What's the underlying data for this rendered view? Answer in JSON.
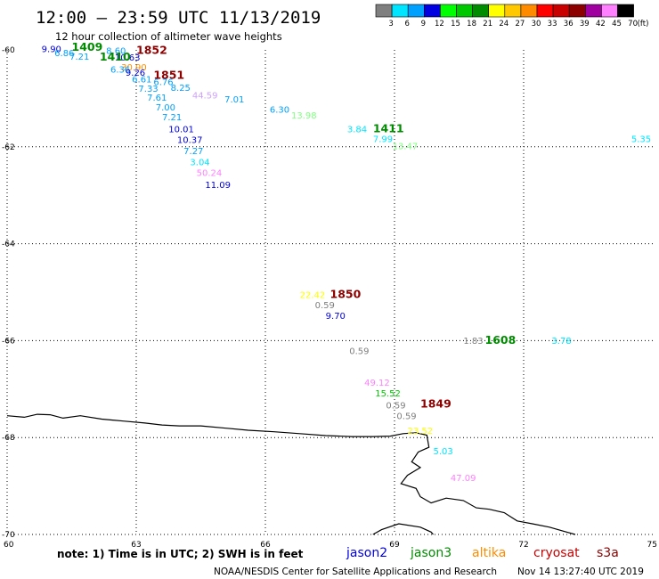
{
  "header": {
    "title": "12:00 — 23:59 UTC 11/13/2019",
    "subtitle": "12 hour collection of altimeter wave heights"
  },
  "legend": {
    "unit": "(ft)",
    "bins": [
      {
        "label": "3",
        "color": "#7f7f7f"
      },
      {
        "label": "6",
        "color": "#00e5ff"
      },
      {
        "label": "9",
        "color": "#00a0ff"
      },
      {
        "label": "12",
        "color": "#0000e0"
      },
      {
        "label": "15",
        "color": "#00ff00"
      },
      {
        "label": "18",
        "color": "#00c800"
      },
      {
        "label": "21",
        "color": "#008c00"
      },
      {
        "label": "24",
        "color": "#ffff00"
      },
      {
        "label": "27",
        "color": "#ffc800"
      },
      {
        "label": "30",
        "color": "#ff8c00"
      },
      {
        "label": "33",
        "color": "#ff0000"
      },
      {
        "label": "36",
        "color": "#c80000"
      },
      {
        "label": "39",
        "color": "#8c0000"
      },
      {
        "label": "42",
        "color": "#a000a0"
      },
      {
        "label": "45",
        "color": "#ff80ff"
      },
      {
        "label": "70",
        "color": "#000000"
      }
    ]
  },
  "map": {
    "lon_range": [
      60,
      75
    ],
    "lat_range": [
      -70,
      -60
    ],
    "lon_ticks": [
      {
        "value": 60,
        "label": "60"
      },
      {
        "value": 63,
        "label": "63"
      },
      {
        "value": 66,
        "label": "66"
      },
      {
        "value": 69,
        "label": "69"
      },
      {
        "value": 72,
        "label": "72"
      },
      {
        "value": 75,
        "label": "75"
      }
    ],
    "lat_ticks": [
      {
        "value": -60,
        "label": "-60"
      },
      {
        "value": -62,
        "label": "-62"
      },
      {
        "value": -64,
        "label": "-64"
      },
      {
        "value": -66,
        "label": "-66"
      },
      {
        "value": -68,
        "label": "-68"
      },
      {
        "value": -70,
        "label": "-70"
      }
    ],
    "grid": "dotted"
  },
  "wave_heights": [
    {
      "text": "9.90",
      "lon": 60.8,
      "lat": -60.05,
      "color": "#0000e0"
    },
    {
      "text": "6.86",
      "lon": 61.1,
      "lat": -60.13,
      "color": "#00a0ff"
    },
    {
      "text": "7.21",
      "lon": 61.45,
      "lat": -60.2,
      "color": "#00a0ff"
    },
    {
      "text": "8.60",
      "lon": 62.3,
      "lat": -60.08,
      "color": "#00a0ff"
    },
    {
      "text": "10.63",
      "lon": 62.5,
      "lat": -60.22,
      "color": "#0000e0"
    },
    {
      "text": "30.90",
      "lon": 62.65,
      "lat": -60.42,
      "color": "#ff8c00"
    },
    {
      "text": "6.36",
      "lon": 62.4,
      "lat": -60.47,
      "color": "#00a0ff"
    },
    {
      "text": "9.26",
      "lon": 62.75,
      "lat": -60.53,
      "color": "#0000e0"
    },
    {
      "text": "6.61",
      "lon": 62.9,
      "lat": -60.67,
      "color": "#00a0ff"
    },
    {
      "text": "6.76",
      "lon": 63.4,
      "lat": -60.73,
      "color": "#00a0ff"
    },
    {
      "text": "7.33",
      "lon": 63.05,
      "lat": -60.86,
      "color": "#00a0ff"
    },
    {
      "text": "8.25",
      "lon": 63.8,
      "lat": -60.85,
      "color": "#00a0ff"
    },
    {
      "text": "7.61",
      "lon": 63.25,
      "lat": -61.05,
      "color": "#00a0ff"
    },
    {
      "text": "44.59",
      "lon": 64.3,
      "lat": -61.0,
      "color": "#d0a0ff"
    },
    {
      "text": "7.01",
      "lon": 65.05,
      "lat": -61.08,
      "color": "#00a0ff"
    },
    {
      "text": "7.00",
      "lon": 63.45,
      "lat": -61.25,
      "color": "#00a0ff"
    },
    {
      "text": "6.30",
      "lon": 66.1,
      "lat": -61.3,
      "color": "#00a0ff"
    },
    {
      "text": "13.98",
      "lon": 66.6,
      "lat": -61.42,
      "color": "#80ff80"
    },
    {
      "text": "7.21",
      "lon": 63.6,
      "lat": -61.45,
      "color": "#00a0ff"
    },
    {
      "text": "10.01",
      "lon": 63.75,
      "lat": -61.7,
      "color": "#0000e0"
    },
    {
      "text": "3.84",
      "lon": 67.9,
      "lat": -61.7,
      "color": "#00e5ff"
    },
    {
      "text": "7.99",
      "lon": 68.5,
      "lat": -61.9,
      "color": "#00e5ff"
    },
    {
      "text": "13.47",
      "lon": 68.95,
      "lat": -62.05,
      "color": "#80ff80"
    },
    {
      "text": "10.37",
      "lon": 63.95,
      "lat": -61.92,
      "color": "#0000e0"
    },
    {
      "text": "5.35",
      "lon": 74.5,
      "lat": -61.9,
      "color": "#00e5ff"
    },
    {
      "text": "7.27",
      "lon": 64.1,
      "lat": -62.15,
      "color": "#00a0ff"
    },
    {
      "text": "3.04",
      "lon": 64.25,
      "lat": -62.38,
      "color": "#00e5ff"
    },
    {
      "text": "50.24",
      "lon": 64.4,
      "lat": -62.6,
      "color": "#ff80ff"
    },
    {
      "text": "11.09",
      "lon": 64.6,
      "lat": -62.85,
      "color": "#0000e0"
    },
    {
      "text": "22.42",
      "lon": 66.8,
      "lat": -65.12,
      "color": "#ffff00"
    },
    {
      "text": "0.59",
      "lon": 67.15,
      "lat": -65.33,
      "color": "#7f7f7f"
    },
    {
      "text": "9.70",
      "lon": 67.4,
      "lat": -65.55,
      "color": "#0000e0"
    },
    {
      "text": "1.83",
      "lon": 70.6,
      "lat": -66.07,
      "color": "#7f7f7f"
    },
    {
      "text": "3.78",
      "lon": 72.65,
      "lat": -66.07,
      "color": "#00e5ff"
    },
    {
      "text": "0.59",
      "lon": 67.95,
      "lat": -66.28,
      "color": "#7f7f7f"
    },
    {
      "text": "49.12",
      "lon": 68.3,
      "lat": -66.93,
      "color": "#ff80ff"
    },
    {
      "text": "15.52",
      "lon": 68.55,
      "lat": -67.15,
      "color": "#00c800"
    },
    {
      "text": "0.59",
      "lon": 68.8,
      "lat": -67.4,
      "color": "#7f7f7f"
    },
    {
      "text": "0.59",
      "lon": 69.05,
      "lat": -67.62,
      "color": "#7f7f7f"
    },
    {
      "text": "23.52",
      "lon": 69.3,
      "lat": -67.92,
      "color": "#ffff00"
    },
    {
      "text": "5.03",
      "lon": 69.9,
      "lat": -68.35,
      "color": "#00e5ff"
    },
    {
      "text": "47.09",
      "lon": 70.3,
      "lat": -68.9,
      "color": "#ff80ff"
    }
  ],
  "pass_times": [
    {
      "text": "1409",
      "lon": 61.5,
      "lat": -60.02,
      "color": "#008c00"
    },
    {
      "text": "1410",
      "lon": 62.15,
      "lat": -60.22,
      "color": "#008c00"
    },
    {
      "text": "1852",
      "lon": 63.0,
      "lat": -60.08,
      "color": "#8c0000"
    },
    {
      "text": "1851",
      "lon": 63.4,
      "lat": -60.6,
      "color": "#8c0000"
    },
    {
      "text": "1411",
      "lon": 68.5,
      "lat": -61.7,
      "color": "#008c00"
    },
    {
      "text": "1850",
      "lon": 67.5,
      "lat": -65.12,
      "color": "#8c0000"
    },
    {
      "text": "1608",
      "lon": 71.1,
      "lat": -66.07,
      "color": "#008c00"
    },
    {
      "text": "1849",
      "lon": 69.6,
      "lat": -67.38,
      "color": "#8c0000"
    }
  ],
  "coastline": [
    [
      60.0,
      -67.55
    ],
    [
      60.4,
      -67.58
    ],
    [
      60.7,
      -67.52
    ],
    [
      61.0,
      -67.53
    ],
    [
      61.3,
      -67.6
    ],
    [
      61.7,
      -67.55
    ],
    [
      62.2,
      -67.62
    ],
    [
      62.7,
      -67.66
    ],
    [
      63.2,
      -67.7
    ],
    [
      63.6,
      -67.74
    ],
    [
      64.0,
      -67.76
    ],
    [
      64.5,
      -67.76
    ],
    [
      65.0,
      -67.8
    ],
    [
      65.6,
      -67.85
    ],
    [
      66.2,
      -67.88
    ],
    [
      66.8,
      -67.92
    ],
    [
      67.4,
      -67.96
    ],
    [
      68.0,
      -67.98
    ],
    [
      68.5,
      -67.98
    ],
    [
      68.9,
      -67.97
    ],
    [
      69.2,
      -67.92
    ],
    [
      69.5,
      -67.9
    ],
    [
      69.75,
      -67.95
    ],
    [
      69.8,
      -68.2
    ],
    [
      69.55,
      -68.3
    ],
    [
      69.4,
      -68.5
    ],
    [
      69.6,
      -68.62
    ],
    [
      69.3,
      -68.78
    ],
    [
      69.15,
      -68.95
    ],
    [
      69.5,
      -69.05
    ],
    [
      69.6,
      -69.22
    ],
    [
      69.85,
      -69.35
    ],
    [
      70.2,
      -69.25
    ],
    [
      70.6,
      -69.3
    ],
    [
      70.9,
      -69.45
    ],
    [
      71.2,
      -69.48
    ],
    [
      71.55,
      -69.55
    ],
    [
      71.85,
      -69.72
    ],
    [
      72.2,
      -69.78
    ],
    [
      72.6,
      -69.85
    ],
    [
      73.0,
      -69.95
    ],
    [
      73.2,
      -70.0
    ]
  ],
  "coastline2": [
    [
      68.5,
      -70.0
    ],
    [
      68.7,
      -69.9
    ],
    [
      69.1,
      -69.78
    ],
    [
      69.6,
      -69.85
    ],
    [
      69.85,
      -69.95
    ],
    [
      69.9,
      -70.0
    ]
  ],
  "footer": {
    "note": "note: 1) Time is in UTC; 2) SWH is in feet",
    "satellites": [
      {
        "name": "jason2",
        "color": "#0000e0"
      },
      {
        "name": "jason3",
        "color": "#008c00"
      },
      {
        "name": "altika",
        "color": "#ff8c00"
      },
      {
        "name": "cryosat",
        "color": "#c80000"
      },
      {
        "name": "s3a",
        "color": "#8c0000"
      }
    ],
    "credit": "NOAA/NESDIS Center for Satellite Applications and Research",
    "timestamp": "Nov 14 13:27:40 UTC 2019"
  }
}
